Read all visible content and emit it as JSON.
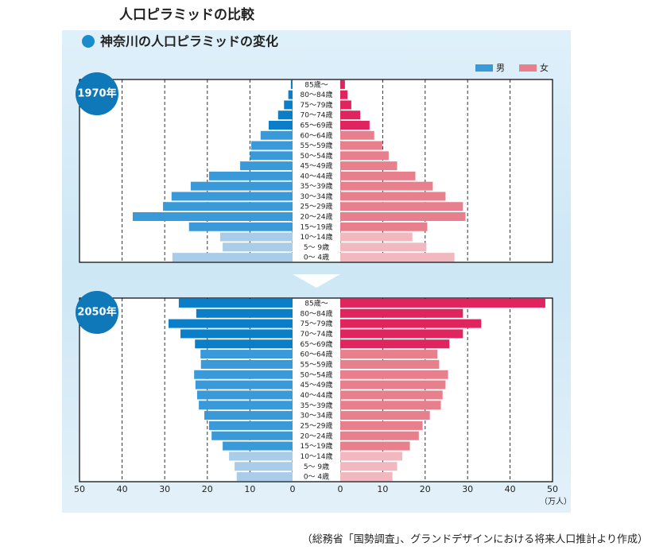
{
  "header": {
    "title": "人口ピラミッドの比較",
    "subtitle": "神奈川の人口ピラミッドの変化"
  },
  "source": "（総務省「国勢調査」、グランドデザインにおける将来人口推計より作成）",
  "chart_data": [
    {
      "type": "pyramid",
      "label": "1970年",
      "categories": [
        "85歳〜",
        "80〜84歳",
        "75〜79歳",
        "70〜74歳",
        "65〜69歳",
        "60〜64歳",
        "55〜59歳",
        "50〜54歳",
        "45〜49歳",
        "40〜44歳",
        "35〜39歳",
        "30〜34歳",
        "25〜29歳",
        "20〜24歳",
        "15〜19歳",
        "10〜14歳",
        "5〜 9歳",
        "0〜 4歳"
      ],
      "xlim": [
        0,
        50
      ],
      "series": [
        {
          "name": "男",
          "color": "#3a9ad9",
          "values": [
            0.4,
            1,
            2,
            3.4,
            5.6,
            7.5,
            9.7,
            10,
            12.3,
            19.6,
            23.9,
            28.4,
            30.4,
            37.5,
            24.3,
            17,
            16.4,
            28.2
          ],
          "colors": [
            "#0a7ec8",
            "#0a7ec8",
            "#0a7ec8",
            "#0a7ec8",
            "#0a7ec8",
            "#3a9ad9",
            "#3a9ad9",
            "#3a9ad9",
            "#3a9ad9",
            "#3a9ad9",
            "#3a9ad9",
            "#3a9ad9",
            "#3a9ad9",
            "#3a9ad9",
            "#3a9ad9",
            "#a9cce9",
            "#a9cce9",
            "#a9cce9"
          ]
        },
        {
          "name": "女",
          "color": "#e87f8c",
          "values": [
            1.1,
            1.7,
            2.6,
            4.7,
            6.9,
            8,
            9.9,
            11.4,
            13.4,
            17.7,
            21.8,
            24.8,
            28.9,
            29.5,
            20.5,
            17,
            20.3,
            26.9
          ],
          "colors": [
            "#e0245e",
            "#e0245e",
            "#e0245e",
            "#e0245e",
            "#e0245e",
            "#e87f8c",
            "#e87f8c",
            "#e87f8c",
            "#e87f8c",
            "#e87f8c",
            "#e87f8c",
            "#e87f8c",
            "#e87f8c",
            "#e87f8c",
            "#e87f8c",
            "#f2b8c0",
            "#f2b8c0",
            "#f2b8c0"
          ]
        }
      ]
    },
    {
      "type": "pyramid",
      "label": "2050年",
      "categories": [
        "85歳〜",
        "80〜84歳",
        "75〜79歳",
        "70〜74歳",
        "65〜69歳",
        "60〜64歳",
        "55〜59歳",
        "50〜54歳",
        "45〜49歳",
        "40〜44歳",
        "35〜39歳",
        "30〜34歳",
        "25〜29歳",
        "20〜24歳",
        "15〜19歳",
        "10〜14歳",
        "5〜 9歳",
        "0〜 4歳"
      ],
      "xlim": [
        0,
        50
      ],
      "xticks": [
        0,
        10,
        20,
        30,
        40,
        50
      ],
      "x_unit": "（万人）",
      "series": [
        {
          "name": "男",
          "color": "#3a9ad9",
          "values": [
            26.7,
            22.6,
            29.1,
            26.3,
            22.9,
            21.6,
            21.5,
            23.1,
            22.8,
            22.4,
            22,
            20.7,
            19.6,
            19,
            16.4,
            14.9,
            13.6,
            13.1
          ],
          "colors": [
            "#0a7ec8",
            "#0a7ec8",
            "#0a7ec8",
            "#0a7ec8",
            "#0a7ec8",
            "#3a9ad9",
            "#3a9ad9",
            "#3a9ad9",
            "#3a9ad9",
            "#3a9ad9",
            "#3a9ad9",
            "#3a9ad9",
            "#3a9ad9",
            "#3a9ad9",
            "#3a9ad9",
            "#a9cce9",
            "#a9cce9",
            "#a9cce9"
          ]
        },
        {
          "name": "女",
          "color": "#e87f8c",
          "values": [
            48.3,
            28.9,
            33.2,
            28.9,
            25.7,
            22.9,
            23.3,
            25.4,
            24.8,
            24.1,
            23.7,
            21.1,
            19.4,
            18.5,
            16.4,
            14.6,
            13.4,
            12.3
          ],
          "colors": [
            "#e0245e",
            "#e0245e",
            "#e0245e",
            "#e0245e",
            "#e0245e",
            "#e87f8c",
            "#e87f8c",
            "#e87f8c",
            "#e87f8c",
            "#e87f8c",
            "#e87f8c",
            "#e87f8c",
            "#e87f8c",
            "#e87f8c",
            "#e87f8c",
            "#f2b8c0",
            "#f2b8c0",
            "#f2b8c0"
          ]
        }
      ]
    }
  ]
}
